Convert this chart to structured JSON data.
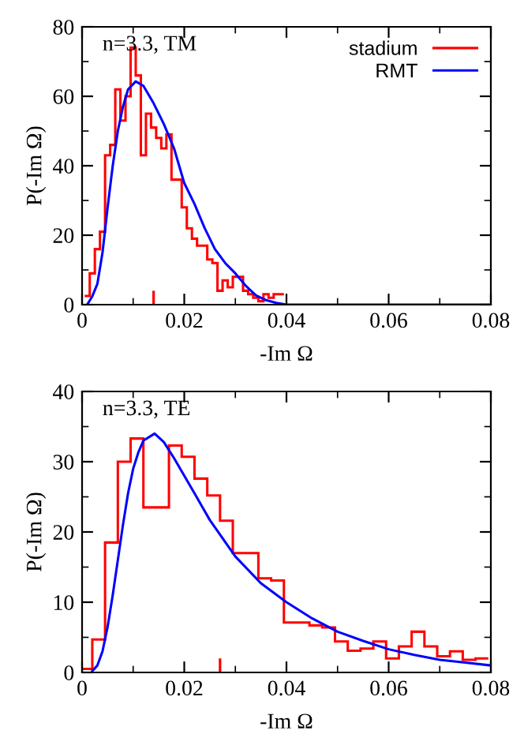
{
  "chart_data": [
    {
      "type": "histogram",
      "annotations": [
        "n=3.3, TM"
      ],
      "xlabel": "-Im Ω",
      "ylabel": "P(-Im Ω)",
      "xlim": [
        0,
        0.08
      ],
      "ylim": [
        0,
        80
      ],
      "xticks": [
        0,
        0.02,
        0.04,
        0.06,
        0.08
      ],
      "yticks": [
        0,
        20,
        40,
        60,
        80
      ],
      "grid": false,
      "legend": "top right",
      "series": [
        {
          "type": "bar",
          "color": "#ff0000",
          "x": [
            0.014
          ],
          "values": [
            4
          ]
        },
        {
          "name": "stadium",
          "color": "#ff0000",
          "bins": [
            0.0005,
            0.0015,
            0.0025,
            0.0035,
            0.0045,
            0.0055,
            0.0065,
            0.0075,
            0.0085,
            0.0095,
            0.0105,
            0.0115,
            0.0125,
            0.0135,
            0.0145,
            0.0155,
            0.0165,
            0.0175,
            0.0185,
            0.0195,
            0.0205,
            0.0215,
            0.0225,
            0.0235,
            0.0245,
            0.0255,
            0.0265,
            0.0275,
            0.0285,
            0.0295,
            0.0305,
            0.0315,
            0.0325,
            0.0335,
            0.0345,
            0.0355,
            0.0365,
            0.0375,
            0.0385,
            0.0395
          ],
          "values": [
            2.5,
            9,
            16,
            21,
            43,
            46,
            62,
            53,
            60,
            74,
            66,
            43,
            55,
            51,
            48,
            45,
            49,
            36,
            36,
            28,
            22,
            19,
            17,
            17,
            13,
            12,
            4,
            7,
            5,
            8,
            8,
            4,
            3,
            2,
            1,
            3,
            2,
            3,
            3
          ]
        },
        {
          "name": "RMT",
          "type": "line",
          "color": "#0000ff",
          "x": [
            0.001,
            0.002,
            0.003,
            0.004,
            0.005,
            0.006,
            0.007,
            0.008,
            0.009,
            0.0105,
            0.012,
            0.014,
            0.016,
            0.018,
            0.02,
            0.022,
            0.024,
            0.026,
            0.028,
            0.03,
            0.032,
            0.034,
            0.036,
            0.038,
            0.04,
            0.08
          ],
          "values": [
            0,
            2.4,
            6,
            15,
            28,
            40,
            50,
            57,
            62,
            64.3,
            63,
            58,
            52,
            45,
            35,
            29,
            22,
            16,
            12,
            9,
            5.5,
            2.7,
            1.3,
            0.5,
            0,
            0
          ]
        }
      ]
    },
    {
      "type": "histogram",
      "annotations": [
        "n=3.3, TE"
      ],
      "xlabel": "-Im Ω",
      "ylabel": "P(-Im Ω)",
      "xlim": [
        0,
        0.08
      ],
      "ylim": [
        0,
        40
      ],
      "xticks": [
        0,
        0.02,
        0.04,
        0.06,
        0.08
      ],
      "yticks": [
        0,
        10,
        20,
        30,
        40
      ],
      "grid": false,
      "series": [
        {
          "type": "bar",
          "color": "#ff0000",
          "x": [
            0.027
          ],
          "values": [
            2
          ]
        },
        {
          "color": "#ff0000",
          "bins": [
            0,
            0.002,
            0.0045,
            0.007,
            0.0095,
            0.012,
            0.0145,
            0.017,
            0.0195,
            0.022,
            0.0245,
            0.027,
            0.0295,
            0.032,
            0.0345,
            0.037,
            0.0395,
            0.042,
            0.0445,
            0.047,
            0.0495,
            0.052,
            0.0545,
            0.057,
            0.0595,
            0.062,
            0.0645,
            0.067,
            0.0695,
            0.072,
            0.0745,
            0.077,
            0.0795
          ],
          "values": [
            0.5,
            4.7,
            18.5,
            30,
            33.3,
            23.5,
            23.5,
            32.3,
            30.7,
            27.6,
            25.2,
            21.6,
            17,
            17,
            13.4,
            13.1,
            7.1,
            7.1,
            6.7,
            6.4,
            4.4,
            3.1,
            3.4,
            4.4,
            2.0,
            3.7,
            5.8,
            3.7,
            2.3,
            3.0,
            1.8,
            2.0
          ]
        },
        {
          "type": "line",
          "color": "#0000ff",
          "x": [
            0.002,
            0.003,
            0.004,
            0.005,
            0.006,
            0.007,
            0.008,
            0.009,
            0.01,
            0.011,
            0.012,
            0.0142,
            0.016,
            0.018,
            0.02,
            0.022,
            0.025,
            0.03,
            0.035,
            0.04,
            0.045,
            0.05,
            0.055,
            0.06,
            0.065,
            0.07,
            0.075,
            0.08
          ],
          "values": [
            0.2,
            1,
            3,
            6.5,
            11,
            16,
            21,
            25.5,
            29,
            31.3,
            33,
            34,
            32.8,
            30.5,
            28,
            25.5,
            21.7,
            16.5,
            12.7,
            10,
            7.7,
            5.8,
            4.5,
            3.3,
            2.5,
            1.8,
            1.4,
            1.0
          ]
        }
      ]
    }
  ]
}
